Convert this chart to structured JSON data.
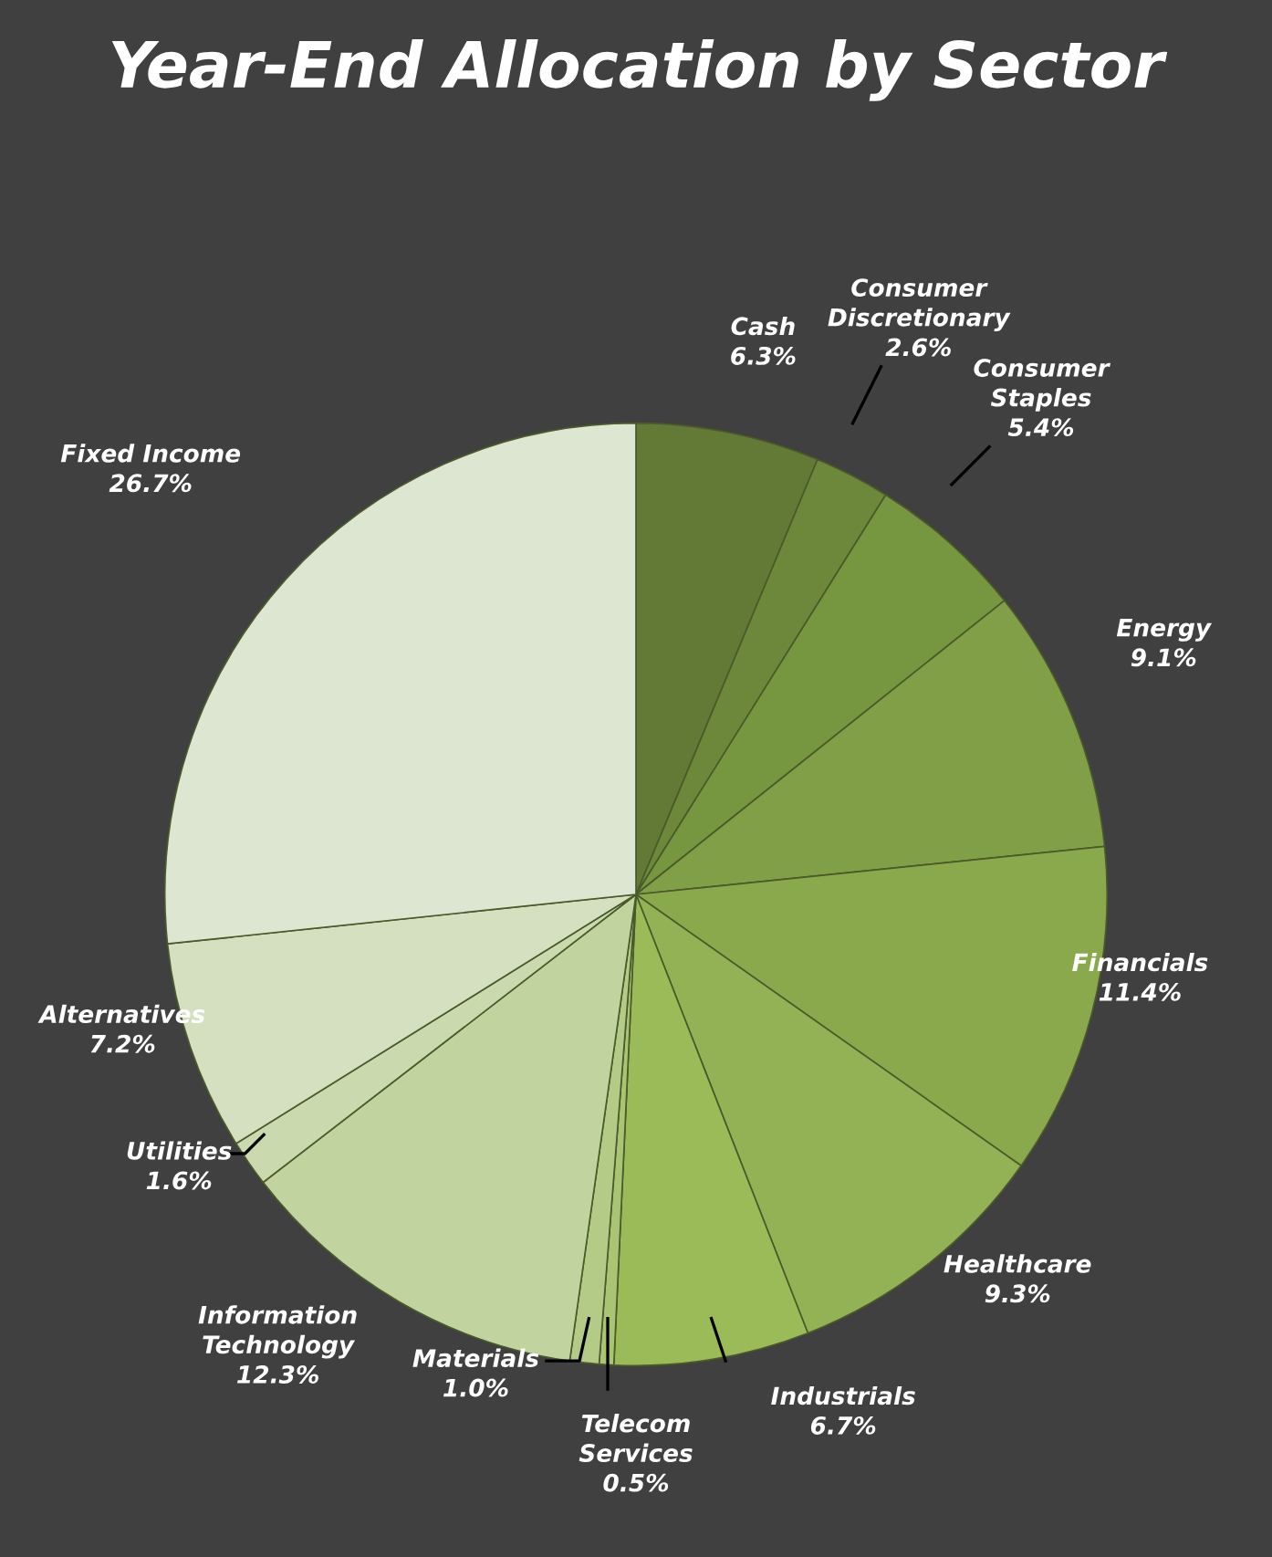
{
  "chart_data": {
    "type": "pie",
    "title": "Year-End Allocation by Sector",
    "categories": [
      "Cash",
      "Consumer Discretionary",
      "Consumer Staples",
      "Energy",
      "Financials",
      "Healthcare",
      "Industrials",
      "Telecom Services",
      "Materials",
      "Information Technology",
      "Utilities",
      "Alternatives",
      "Fixed Income"
    ],
    "values": [
      6.3,
      2.6,
      5.4,
      9.1,
      11.4,
      9.3,
      6.7,
      0.5,
      1.0,
      12.3,
      1.6,
      7.2,
      26.7
    ],
    "value_labels": [
      "6.3%",
      "2.6%",
      "5.4%",
      "9.1%",
      "11.4%",
      "9.3%",
      "6.7%",
      "0.5%",
      "1.0%",
      "12.3%",
      "1.6%",
      "7.2%",
      "26.7%"
    ],
    "colors": [
      "#637a36",
      "#6d883b",
      "#779640",
      "#809f46",
      "#8aa94c",
      "#93b255",
      "#9bbb59",
      "#a9c472",
      "#b4cb88",
      "#c1d4a0",
      "#cadaae",
      "#d4e0c0",
      "#dde6d0"
    ],
    "legend": false
  }
}
